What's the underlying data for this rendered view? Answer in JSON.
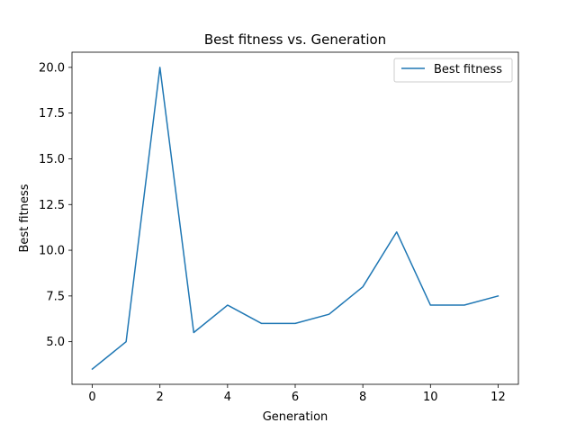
{
  "chart_data": {
    "type": "line",
    "title": "Best fitness vs. Generation",
    "xlabel": "Generation",
    "ylabel": "Best fitness",
    "xlim": [
      -0.6,
      12.6
    ],
    "ylim": [
      2.67,
      20.83
    ],
    "xticks": [
      0,
      2,
      4,
      6,
      8,
      10,
      12
    ],
    "yticks": [
      5.0,
      7.5,
      10.0,
      12.5,
      15.0,
      17.5,
      20.0
    ],
    "ytick_labels": [
      "5.0",
      "7.5",
      "10.0",
      "12.5",
      "15.0",
      "17.5",
      "20.0"
    ],
    "legend_position": "top-right",
    "grid": false,
    "series": [
      {
        "name": "Best fitness",
        "color": "#1f77b4",
        "x": [
          0,
          1,
          2,
          3,
          4,
          5,
          6,
          7,
          8,
          9,
          10,
          11,
          12
        ],
        "y": [
          3.5,
          5.0,
          20.0,
          5.5,
          7.0,
          6.0,
          6.0,
          6.5,
          8.0,
          11.0,
          7.0,
          7.0,
          7.5
        ]
      }
    ]
  }
}
